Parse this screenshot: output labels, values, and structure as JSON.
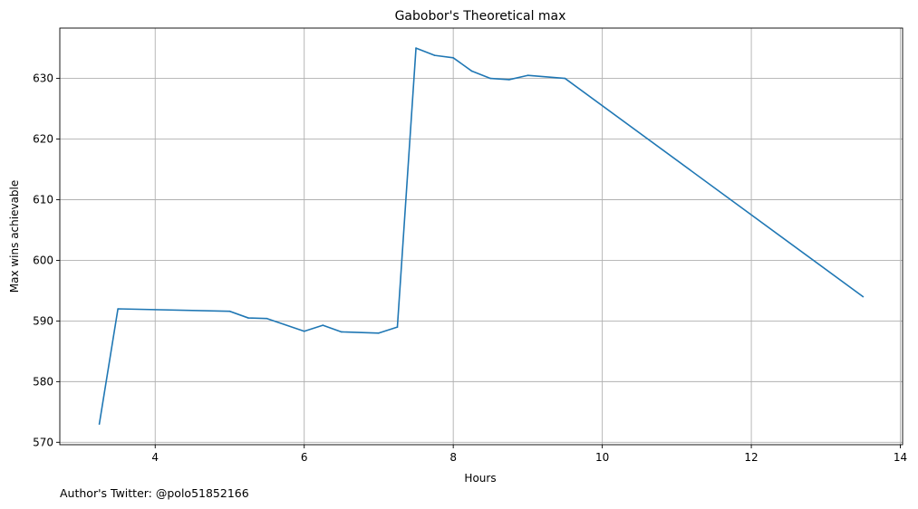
{
  "chart_data": {
    "type": "line",
    "title": "Gabobor's Theoretical max",
    "xlabel": "Hours",
    "ylabel": "Max wins achievable",
    "xlim": [
      2.72,
      14.03
    ],
    "ylim": [
      569.6,
      638.3
    ],
    "xticks": [
      4,
      6,
      8,
      10,
      12,
      14
    ],
    "yticks": [
      570,
      580,
      590,
      600,
      610,
      620,
      630
    ],
    "grid": true,
    "line_color": "#1f77b4",
    "series": [
      {
        "x": [
          3.25,
          3.5,
          5.0,
          5.25,
          5.5,
          6.0,
          6.25,
          6.5,
          7.0,
          7.25,
          7.5,
          7.75,
          8.0,
          8.25,
          8.5,
          8.75,
          9.0,
          9.5,
          13.5
        ],
        "y": [
          573.0,
          592.0,
          591.6,
          590.5,
          590.4,
          588.3,
          589.3,
          588.2,
          588.0,
          589.0,
          635.0,
          633.8,
          633.4,
          631.2,
          630.0,
          629.8,
          630.5,
          630.0,
          594.0
        ]
      }
    ]
  },
  "footer_text": "Author's Twitter: @polo51852166"
}
